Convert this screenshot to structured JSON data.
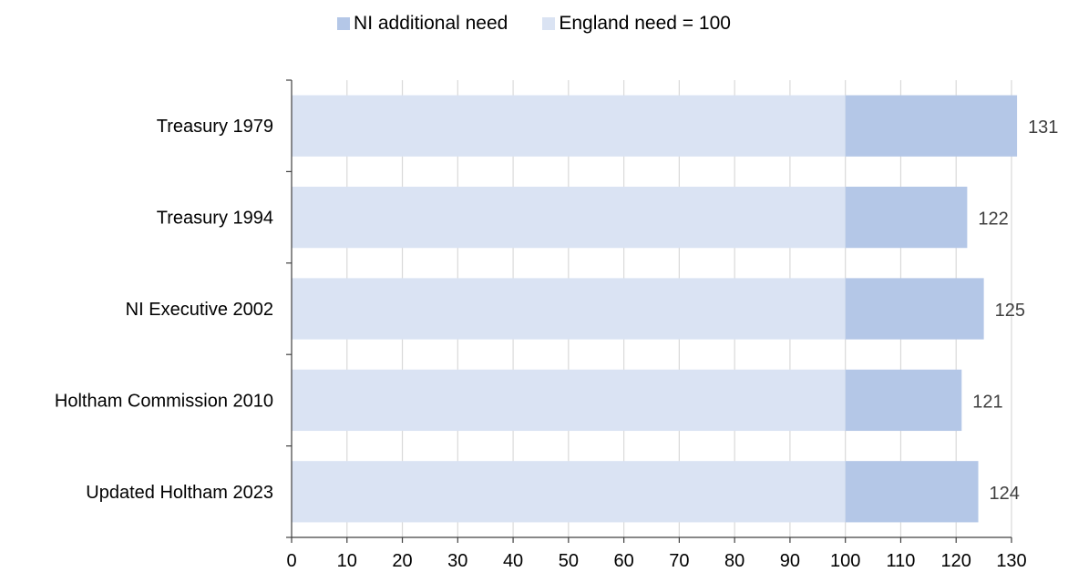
{
  "chart_data": {
    "type": "bar",
    "orientation": "horizontal",
    "stacked": true,
    "categories": [
      "Treasury 1979",
      "Treasury 1994",
      "NI Executive 2002",
      "Holtham Commission 2010",
      "Updated Holtham 2023"
    ],
    "series": [
      {
        "name": "England need = 100",
        "values": [
          100,
          100,
          100,
          100,
          100
        ],
        "color": "#dae3f3"
      },
      {
        "name": "NI additional need",
        "values": [
          31,
          22,
          25,
          21,
          24
        ],
        "color": "#b4c7e7"
      }
    ],
    "totals": [
      131,
      122,
      125,
      121,
      124
    ],
    "xlim": [
      0,
      130
    ],
    "xticks": [
      0,
      10,
      20,
      30,
      40,
      50,
      60,
      70,
      80,
      90,
      100,
      110,
      120,
      130
    ],
    "grid": true,
    "legend_position": "top",
    "legend": [
      {
        "label": "NI additional need",
        "color": "#b4c7e7"
      },
      {
        "label": "England need = 100",
        "color": "#dae3f3"
      }
    ]
  }
}
